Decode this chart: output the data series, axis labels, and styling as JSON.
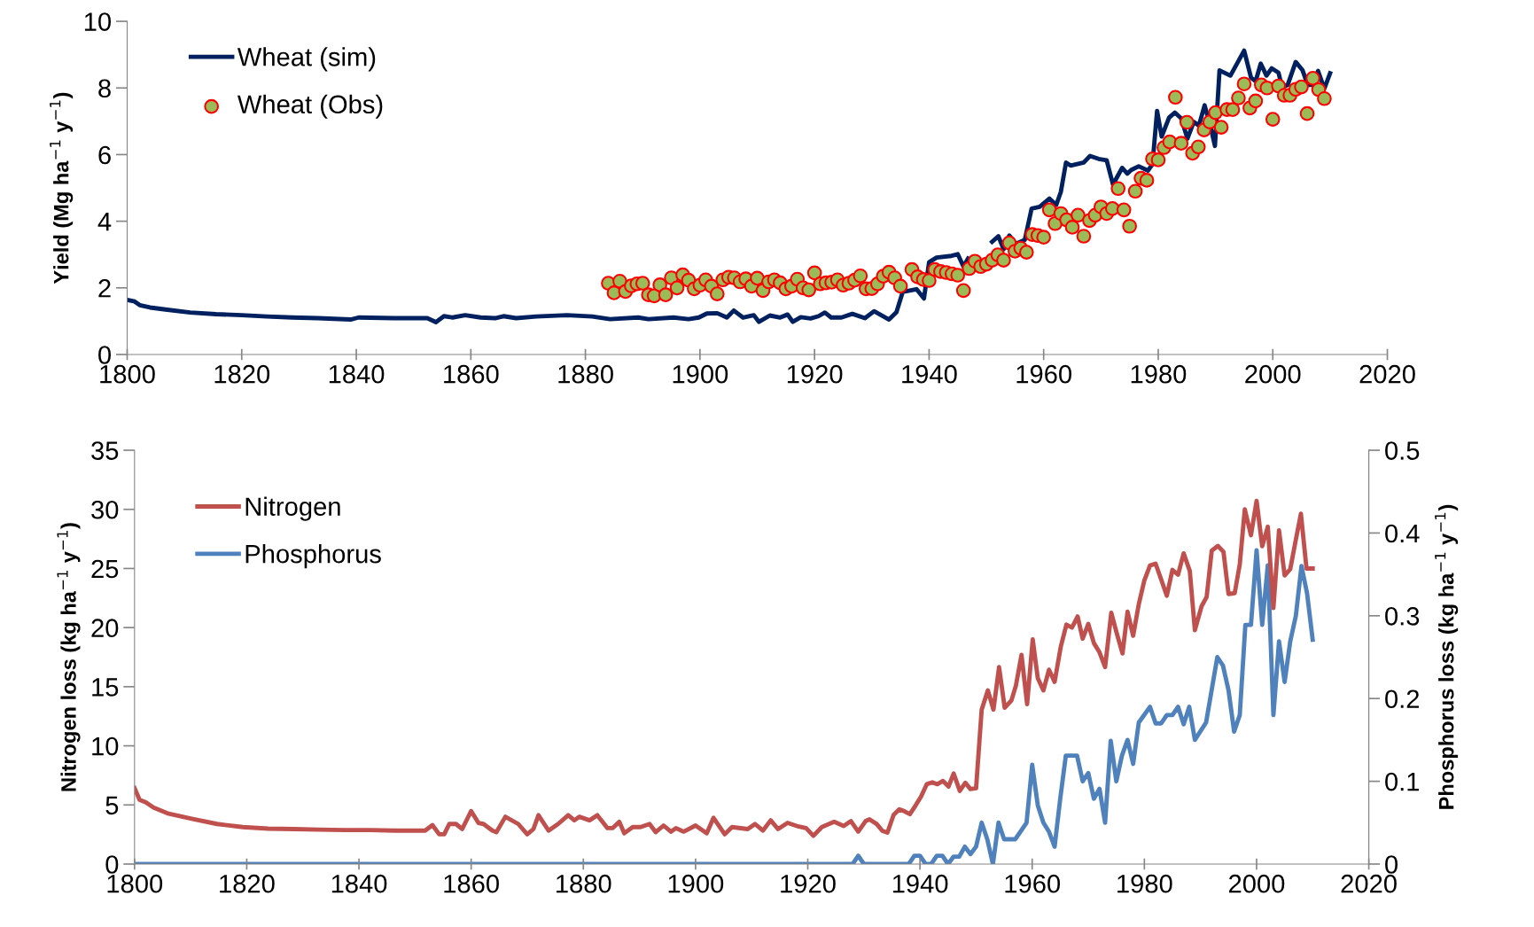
{
  "chart_data": [
    {
      "type": "line",
      "xlim": [
        1800,
        2020
      ],
      "xticks": [
        1800,
        1820,
        1840,
        1860,
        1880,
        1900,
        1920,
        1940,
        1960,
        1980,
        2000,
        2020
      ],
      "ylim": [
        0,
        10
      ],
      "yticks": [
        0,
        2,
        4,
        6,
        8,
        10
      ],
      "ylabel": "Yield (Mg ha$^{−1}$ y$^{−1}$)",
      "legend": "top left",
      "grid": false,
      "series": [
        {
          "name": "Wheat (sim)",
          "color": "#002060",
          "x": [
            1800,
            1801.3,
            1802.2,
            1804,
            1806.7,
            1811,
            1815.5,
            1820,
            1824.4,
            1828.8,
            1833.3,
            1839,
            1840.4,
            1846.6,
            1852.4,
            1853.9,
            1855.3,
            1856.8,
            1859,
            1861.7,
            1864.2,
            1865.7,
            1867.9,
            1871.4,
            1876.8,
            1881.2,
            1884.3,
            1889.2,
            1891,
            1895.4,
            1898,
            1899.8,
            1901.2,
            1903,
            1904.7,
            1905.9,
            1907.5,
            1909.4,
            1910.3,
            1912.2,
            1914,
            1915.3,
            1916.2,
            1917.6,
            1919.3,
            1920.7,
            1921.8,
            1922.9,
            1924.7,
            1926.6,
            1928.8,
            1930.4,
            1933,
            1934.3,
            1935.4,
            1937.8,
            1939.1,
            1940,
            1941.3,
            1943.9,
            1945,
            1946,
            1946.8,
            1949,
            1951,
            1952.1,
            1953,
            1954,
            1955.1,
            1956.7,
            1957.9,
            1959.3,
            1961,
            1962.2,
            1963,
            1963.9,
            1964.7,
            1967,
            1968.1,
            1969.6,
            1971,
            1972.1,
            1973.7,
            1974.6,
            1975.3,
            1976.6,
            1978.2,
            1979,
            1979.8,
            1980.6,
            1981.9,
            1982.9,
            1984,
            1985.1,
            1986.2,
            1987.1,
            1988.1,
            1989.1,
            1989.9,
            1990.7,
            1992.6,
            1995,
            1996.2,
            1997,
            1997.9,
            1998.9,
            1999.8,
            2001,
            2001.6,
            2002.6,
            2004,
            2005.2,
            2006.1,
            2006.9,
            2007.9,
            2009,
            2010
          ],
          "values": [
            1.64,
            1.59,
            1.48,
            1.41,
            1.35,
            1.26,
            1.21,
            1.18,
            1.14,
            1.11,
            1.09,
            1.05,
            1.11,
            1.09,
            1.09,
            0.97,
            1.15,
            1.11,
            1.18,
            1.11,
            1.09,
            1.15,
            1.09,
            1.14,
            1.18,
            1.14,
            1.06,
            1.11,
            1.06,
            1.11,
            1.06,
            1.11,
            1.23,
            1.24,
            1.11,
            1.32,
            1.11,
            1.18,
            0.98,
            1.17,
            1.11,
            1.2,
            0.98,
            1.12,
            1.08,
            1.15,
            1.26,
            1.11,
            1.11,
            1.22,
            1.09,
            1.3,
            1.05,
            1.27,
            1.88,
            1.96,
            1.68,
            2.77,
            2.91,
            2.96,
            3.01,
            2.64,
            2.88,
            null,
            3.38,
            3.55,
            3.16,
            3.57,
            3.32,
            3.44,
            4.38,
            4.43,
            4.68,
            4.49,
            4.88,
            5.76,
            5.67,
            5.76,
            5.96,
            5.87,
            5.83,
            5.1,
            5.6,
            5.43,
            5.54,
            5.65,
            5.52,
            5.71,
            7.31,
            6.54,
            7.11,
            7.26,
            7.09,
            6.48,
            6.98,
            6.87,
            7.48,
            6.87,
            6.26,
            8.53,
            8.37,
            9.12,
            8.31,
            8.2,
            8.73,
            8.37,
            8.59,
            8.46,
            8.03,
            8.09,
            8.78,
            8.53,
            8.09,
            8.09,
            8.51,
            7.98,
            8.44
          ]
        },
        {
          "name": "Wheat (Obs)",
          "type": "scatter",
          "marker": "circle",
          "color": "#9bbb59",
          "x": [
            1884,
            1885,
            1886,
            1887,
            1888,
            1889,
            1890,
            1891,
            1892,
            1893,
            1894,
            1895,
            1896,
            1897,
            1898,
            1899,
            1900,
            1901,
            1902,
            1903,
            1904,
            1905,
            1906,
            1907,
            1908,
            1909,
            1910,
            1911,
            1912,
            1913,
            1914,
            1915,
            1916,
            1917,
            1918,
            1919,
            1920,
            1921,
            1922,
            1923,
            1924,
            1925,
            1926,
            1927,
            1928,
            1929,
            1930,
            1931,
            1932,
            1933,
            1934,
            1935,
            1937,
            1938,
            1939,
            1940,
            1941,
            1942,
            1943,
            1944,
            1945,
            1946,
            1947,
            1948,
            1949,
            1950,
            1951,
            1952,
            1953,
            1954,
            1955,
            1956,
            1957,
            1958,
            1959,
            1960,
            1961,
            1962,
            1963,
            1964,
            1965,
            1966,
            1967,
            1968,
            1969,
            1970,
            1971,
            1972,
            1973,
            1974,
            1975,
            1976,
            1977,
            1978,
            1979,
            1980,
            1981,
            1982,
            1983,
            1984,
            1985,
            1986,
            1987,
            1988,
            1989,
            1990,
            1991,
            1992,
            1993,
            1994,
            1995,
            1996,
            1997,
            1998,
            1999,
            2000,
            2001,
            2002,
            2003,
            2004,
            2005,
            2006,
            2007,
            2008,
            2009
          ],
          "values": [
            2.14,
            1.85,
            2.2,
            1.89,
            2.06,
            2.12,
            2.14,
            1.79,
            1.76,
            2.09,
            1.79,
            2.3,
            2.0,
            2.39,
            2.23,
            1.97,
            2.08,
            2.24,
            2.05,
            1.82,
            2.24,
            2.32,
            2.3,
            2.18,
            2.27,
            2.05,
            2.29,
            1.92,
            2.18,
            2.24,
            2.15,
            1.97,
            2.05,
            2.26,
            2.0,
            1.94,
            2.45,
            2.12,
            2.15,
            2.17,
            2.24,
            2.08,
            2.14,
            2.23,
            2.36,
            1.97,
            1.98,
            2.12,
            2.35,
            2.47,
            2.3,
            2.05,
            2.55,
            2.33,
            2.25,
            2.22,
            2.55,
            2.49,
            2.46,
            2.42,
            2.38,
            1.92,
            2.58,
            2.8,
            2.64,
            2.71,
            2.83,
            2.99,
            2.83,
            3.35,
            3.1,
            3.19,
            3.07,
            3.6,
            3.57,
            3.52,
            4.34,
            3.93,
            4.23,
            4.04,
            3.82,
            4.18,
            3.55,
            4.02,
            4.18,
            4.43,
            4.23,
            4.38,
            4.98,
            4.34,
            3.85,
            4.9,
            5.29,
            5.23,
            5.87,
            5.84,
            6.21,
            6.38,
            7.72,
            6.34,
            6.97,
            6.04,
            6.23,
            6.74,
            6.98,
            7.26,
            6.82,
            7.35,
            7.35,
            7.7,
            8.12,
            7.4,
            7.61,
            8.09,
            8.0,
            7.06,
            8.06,
            7.78,
            7.78,
            7.96,
            8.03,
            7.23,
            8.29,
            7.95,
            7.68
          ]
        }
      ]
    },
    {
      "type": "line",
      "xlim": [
        1800,
        2020
      ],
      "xticks": [
        1800,
        1820,
        1840,
        1860,
        1880,
        1900,
        1920,
        1940,
        1960,
        1980,
        2000,
        2020
      ],
      "ylim": [
        0,
        35
      ],
      "yticks": [
        0,
        5,
        10,
        15,
        20,
        25,
        30,
        35
      ],
      "y2lim": [
        0,
        0.5
      ],
      "y2ticks": [
        0,
        0.1,
        0.2,
        0.3,
        0.4,
        0.5
      ],
      "ylabel": "Nitrogen loss (kg ha$^{−1}$ y$^{−1}$)",
      "y2label": "Phosphorus loss (kg ha$^{−1}$ y$^{−1}$)",
      "legend": "top left",
      "grid": false,
      "series": [
        {
          "name": "Nitrogen",
          "color": "#c0504d",
          "x": [
            1800,
            1800.9,
            1802,
            1803.4,
            1806.1,
            1810.2,
            1814.7,
            1819.3,
            1823.8,
            1828.4,
            1832.9,
            1837.5,
            1842,
            1846.5,
            1851.8,
            1853.1,
            1854.3,
            1855.2,
            1856.1,
            1857.3,
            1858.4,
            1860,
            1861.3,
            1862.2,
            1863.8,
            1864.5,
            1866.1,
            1868.4,
            1870,
            1871.1,
            1872,
            1873.8,
            1875.5,
            1877.3,
            1878.4,
            1879.3,
            1881.1,
            1882.5,
            1884.3,
            1885.2,
            1886.4,
            1887.3,
            1888.8,
            1890.2,
            1891.8,
            1892.9,
            1894.3,
            1895.6,
            1896.5,
            1897.9,
            1900,
            1902,
            1903.2,
            1905.2,
            1906.5,
            1909.3,
            1910.6,
            1912,
            1913.4,
            1914.7,
            1916.4,
            1918.4,
            1919.7,
            1921,
            1922.5,
            1924.7,
            1926.4,
            1927.7,
            1929,
            1930.3,
            1931,
            1932.3,
            1933.3,
            1934.2,
            1935.3,
            1936.3,
            1937.2,
            1938.2,
            1939.2,
            1940.2,
            1941.2,
            1942.2,
            1943.1,
            1944.1,
            1945.1,
            1946,
            1947.1,
            1948.1,
            1949,
            1950,
            1951,
            1952.1,
            1953.1,
            1954.1,
            1955.1,
            1956.3,
            1957.1,
            1958.1,
            1959.1,
            1960.1,
            1961,
            1962,
            1963,
            1964,
            1965.1,
            1966.1,
            1967.1,
            1968.1,
            1969,
            1970,
            1971,
            1972,
            1973,
            1974.1,
            1975.1,
            1976.1,
            1977,
            1978,
            1979,
            1980,
            1981,
            1982,
            1983,
            1984,
            1985,
            1986,
            1987,
            1988.1,
            1989,
            1990.2,
            1991.1,
            1992,
            1993.1,
            1994.1,
            1995,
            1996.1,
            1997,
            1997.9,
            1999,
            2000,
            2001,
            2002,
            2003,
            2004,
            2005,
            2006,
            2007,
            2007.9,
            2008.9,
            2010
          ],
          "values": [
            6.43,
            5.43,
            5.22,
            4.78,
            4.26,
            3.83,
            3.39,
            3.13,
            3.0,
            2.96,
            2.91,
            2.87,
            2.87,
            2.83,
            2.83,
            3.3,
            2.52,
            2.52,
            3.39,
            3.39,
            2.96,
            4.48,
            3.48,
            3.39,
            2.83,
            2.7,
            4.0,
            3.39,
            2.52,
            2.96,
            4.13,
            2.83,
            3.39,
            4.13,
            3.7,
            4.0,
            3.7,
            4.13,
            3.04,
            3.04,
            3.57,
            2.61,
            3.13,
            3.13,
            3.39,
            2.7,
            3.26,
            2.74,
            3.04,
            2.74,
            3.26,
            2.61,
            3.91,
            2.52,
            3.13,
            2.96,
            3.39,
            2.83,
            3.7,
            2.96,
            3.48,
            3.17,
            3.04,
            2.39,
            3.13,
            3.57,
            3.22,
            3.63,
            2.75,
            3.63,
            3.78,
            3.38,
            2.81,
            2.66,
            4.16,
            4.63,
            4.47,
            4.22,
            4.94,
            5.72,
            6.75,
            6.91,
            6.75,
            7.03,
            6.56,
            7.66,
            6.19,
            6.88,
            6.34,
            6.41,
            13.06,
            14.69,
            13.06,
            16.66,
            13.22,
            13.84,
            15.09,
            17.69,
            13.53,
            19.0,
            15.72,
            14.69,
            16.44,
            15.41,
            18.38,
            20.25,
            20.0,
            20.94,
            19.06,
            20.31,
            18.69,
            17.91,
            16.66,
            21.25,
            19.47,
            17.81,
            21.34,
            19.31,
            21.97,
            24.0,
            25.25,
            25.41,
            24.06,
            22.69,
            24.88,
            24.47,
            26.28,
            24.78,
            19.78,
            21.81,
            22.59,
            26.5,
            26.91,
            26.41,
            22.84,
            22.91,
            25.34,
            30.0,
            27.81,
            30.72,
            26.88,
            28.53,
            21.66,
            28.22,
            24.41,
            24.94,
            27.44,
            29.63,
            25.0,
            25.0
          ]
        },
        {
          "name": "Phosphorus",
          "axis": "y2",
          "color": "#4f81bd",
          "x": [
            1800,
            1928,
            1929,
            1930,
            1938,
            1939,
            1940,
            1941,
            1942,
            1943,
            1944,
            1945,
            1946,
            1947,
            1948,
            1949,
            1950,
            1951,
            1952,
            1953,
            1954,
            1955,
            1957,
            1959,
            1960,
            1961,
            1962,
            1963,
            1964,
            1965,
            1966,
            1968,
            1969,
            1970,
            1971,
            1972,
            1973,
            1974,
            1975,
            1976,
            1977,
            1978,
            1979,
            1981,
            1982,
            1983,
            1984,
            1985,
            1986,
            1987,
            1988,
            1989,
            1991,
            1993,
            1994,
            1995,
            1996,
            1997,
            1998,
            1999,
            2000,
            2001,
            2002,
            2003,
            2004,
            2005,
            2006,
            2007,
            2008,
            2009,
            2010
          ],
          "values": [
            0,
            0,
            0.01,
            0,
            0,
            0.01,
            0.01,
            0,
            0,
            0.01,
            0.01,
            0,
            0.009,
            0.009,
            0.021,
            0.012,
            0.021,
            0.05,
            0.03,
            0,
            0.05,
            0.03,
            0.03,
            0.05,
            0.12,
            0.071,
            0.05,
            0.039,
            0.021,
            0.079,
            0.131,
            0.131,
            0.1,
            0.11,
            0.079,
            0.091,
            0.05,
            0.149,
            0.1,
            0.131,
            0.15,
            0.121,
            0.171,
            0.19,
            0.17,
            0.17,
            0.18,
            0.18,
            0.19,
            0.169,
            0.19,
            0.15,
            0.171,
            0.25,
            0.24,
            0.21,
            0.16,
            0.18,
            0.289,
            0.289,
            0.379,
            0.289,
            0.361,
            0.18,
            0.269,
            0.22,
            0.269,
            0.3,
            0.36,
            0.327,
            0.271
          ]
        }
      ]
    }
  ]
}
